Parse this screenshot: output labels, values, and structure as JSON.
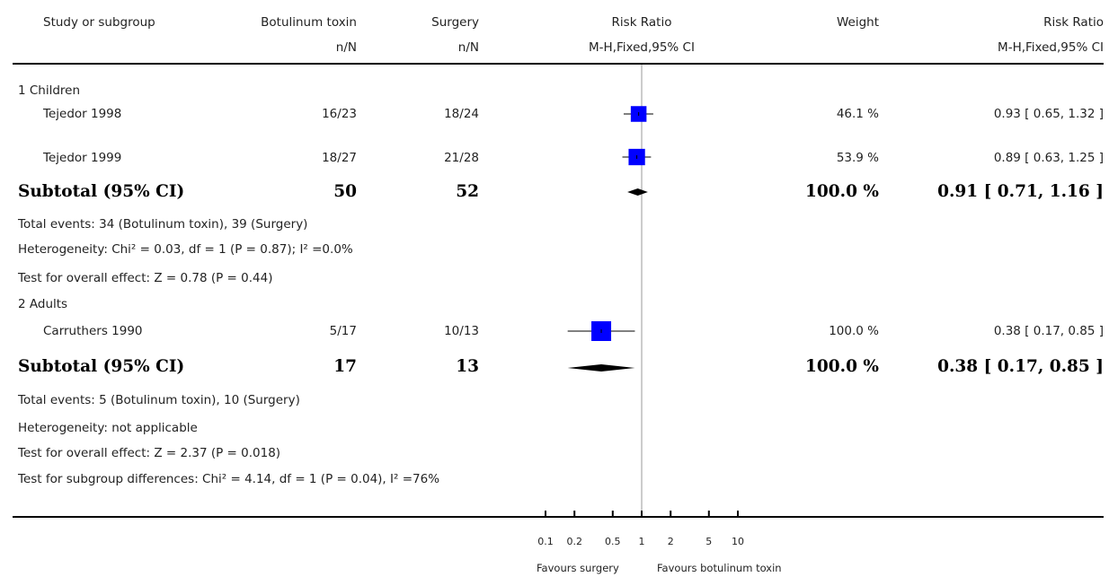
{
  "header": {
    "study_col": "Study or subgroup",
    "group1": "Botulinum toxin",
    "group2": "Surgery",
    "rr_col": "Risk Ratio",
    "weight_col": "Weight",
    "rr_col2": "Risk Ratio",
    "group1_sub": "n/N",
    "group2_sub": "n/N",
    "rr_sub": "M-H,Fixed,95% CI",
    "rr_sub2": "M-H,Fixed,95% CI"
  },
  "subgroups": [
    {
      "label": "1 Children",
      "studies": [
        {
          "name": "Tejedor 1998",
          "g1": "16/23",
          "g2": "18/24",
          "weight": "46.1 %",
          "ci_text": "0.93 [ 0.65, 1.32 ]"
        },
        {
          "name": "Tejedor 1999",
          "g1": "18/27",
          "g2": "21/28",
          "weight": "53.9 %",
          "ci_text": "0.89 [ 0.63, 1.25 ]"
        }
      ],
      "subtotal": {
        "label": "Subtotal (95% CI)",
        "g1": "50",
        "g2": "52",
        "weight": "100.0 %",
        "ci_text": "0.91 [ 0.71, 1.16 ]"
      },
      "notes": [
        "Total events: 34 (Botulinum toxin), 39 (Surgery)",
        "Heterogeneity: Chi² = 0.03, df = 1 (P = 0.87); I² =0.0%",
        "Test for overall effect: Z = 0.78 (P = 0.44)"
      ]
    },
    {
      "label": "2 Adults",
      "studies": [
        {
          "name": "Carruthers 1990",
          "g1": "5/17",
          "g2": "10/13",
          "weight": "100.0 %",
          "ci_text": "0.38 [ 0.17, 0.85 ]"
        }
      ],
      "subtotal": {
        "label": "Subtotal (95% CI)",
        "g1": "17",
        "g2": "13",
        "weight": "100.0 %",
        "ci_text": "0.38 [ 0.17, 0.85 ]"
      },
      "notes": [
        "Total events: 5 (Botulinum toxin), 10 (Surgery)",
        "Heterogeneity: not applicable",
        "Test for overall effect: Z = 2.37 (P = 0.018)"
      ]
    }
  ],
  "subgroup_differences": "Test for subgroup differences: Chi² = 4.14, df = 1 (P = 0.04), I² =76%",
  "axis": {
    "ticks": [
      "0.1",
      "0.2",
      "0.5",
      "1",
      "2",
      "5",
      "10"
    ],
    "favours_left": "Favours surgery",
    "favours_right": "Favours botulinum toxin"
  },
  "colors": {
    "marker": "#0000ff",
    "line": "#000000",
    "null_line": "#999999"
  },
  "chart_data": {
    "type": "forest",
    "scale": "log",
    "xlim": [
      0.1,
      10
    ],
    "null_value": 1,
    "studies": [
      {
        "name": "Tejedor 1998",
        "subgroup": "1 Children",
        "rr": 0.93,
        "lo": 0.65,
        "hi": 1.32,
        "weight": 46.1
      },
      {
        "name": "Tejedor 1999",
        "subgroup": "1 Children",
        "rr": 0.89,
        "lo": 0.63,
        "hi": 1.25,
        "weight": 53.9
      },
      {
        "name": "Carruthers 1990",
        "subgroup": "2 Adults",
        "rr": 0.38,
        "lo": 0.17,
        "hi": 0.85,
        "weight": 100.0
      }
    ],
    "subtotals": [
      {
        "subgroup": "1 Children",
        "rr": 0.91,
        "lo": 0.71,
        "hi": 1.16
      },
      {
        "subgroup": "2 Adults",
        "rr": 0.38,
        "lo": 0.17,
        "hi": 0.85
      }
    ]
  }
}
